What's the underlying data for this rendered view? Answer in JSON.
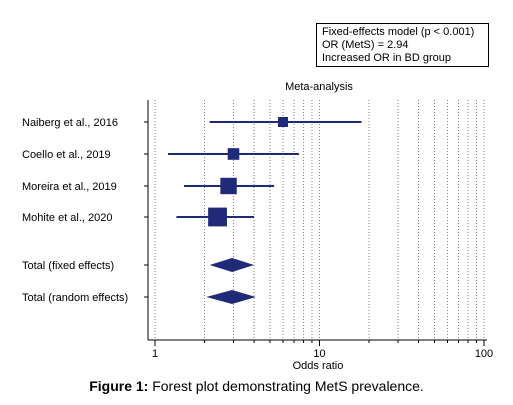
{
  "chart_data": {
    "type": "forest",
    "title": "Meta-analysis",
    "xlabel": "Odds ratio",
    "x_scale": "log",
    "xlim": [
      1,
      100
    ],
    "x_ticks": [
      1,
      10,
      100
    ],
    "x_tick_labels": [
      "1",
      "10",
      "100"
    ],
    "grid": "vertical-dotted",
    "studies": [
      {
        "label": "Naiberg et al., 2016",
        "or": 6.0,
        "ci": [
          2.15,
          18.0
        ],
        "weight": 1
      },
      {
        "label": "Coello et al., 2019",
        "or": 3.0,
        "ci": [
          1.2,
          7.5
        ],
        "weight": 1.4
      },
      {
        "label": "Moreira et al., 2019",
        "or": 2.8,
        "ci": [
          1.5,
          5.3
        ],
        "weight": 2.6
      },
      {
        "label": "Mohite et al., 2020",
        "or": 2.4,
        "ci": [
          1.35,
          4.0
        ],
        "weight": 3.2
      }
    ],
    "pooled": [
      {
        "label": "Total (fixed effects)",
        "or": 2.94,
        "ci": [
          2.15,
          4.0
        ]
      },
      {
        "label": "Total (random effects)",
        "or": 2.94,
        "ci": [
          2.05,
          4.1
        ]
      }
    ],
    "colors": {
      "marker": "#1f2a78",
      "axis": "#000000",
      "grid": "#808080"
    }
  },
  "stat_box": {
    "line1": "Fixed-effects model (p < 0.001)",
    "line2": "OR (MetS) = 2.94",
    "line3": "Increased OR in BD group"
  },
  "caption": {
    "prefix": "Figure 1:",
    "text": "Forest plot demonstrating MetS prevalence."
  }
}
